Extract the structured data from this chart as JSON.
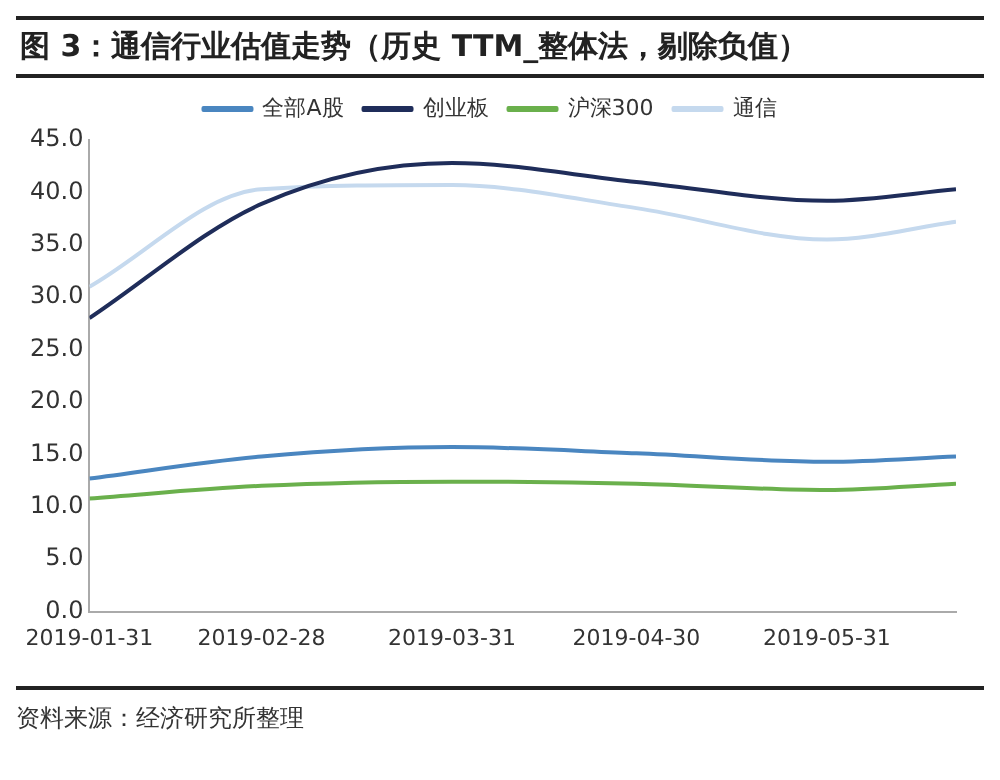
{
  "chart_data": {
    "type": "line",
    "title": "图 3：通信行业估值走势（历史 TTM_整体法，剔除负值）",
    "x": [
      "2019-01-31",
      "2019-02-28",
      "2019-03-31",
      "2019-04-30",
      "2019-05-31",
      "2019-06-21"
    ],
    "series": [
      {
        "name": "全部A股",
        "color": "#4a86c0",
        "values": [
          12.7,
          14.8,
          15.7,
          15.1,
          14.3,
          14.8
        ]
      },
      {
        "name": "创业板",
        "color": "#1f2d5a",
        "values": [
          28.0,
          38.9,
          42.8,
          41.0,
          39.2,
          40.3
        ]
      },
      {
        "name": "沪深300",
        "color": "#6ab04c",
        "values": [
          10.8,
          12.0,
          12.4,
          12.2,
          11.6,
          12.2
        ]
      },
      {
        "name": "通信",
        "color": "#c5d9ee",
        "values": [
          31.0,
          40.3,
          40.7,
          38.5,
          35.5,
          37.2
        ]
      }
    ],
    "xlim": [
      "2019-01-31",
      "2019-06-21"
    ],
    "xticks": [
      "2019-01-31",
      "2019-02-28",
      "2019-03-31",
      "2019-04-30",
      "2019-05-31"
    ],
    "ylim": [
      0,
      45
    ],
    "yticks": [
      {
        "value": 0,
        "label": "0.0"
      },
      {
        "value": 5,
        "label": "5.0"
      },
      {
        "value": 10,
        "label": "10.0"
      },
      {
        "value": 15,
        "label": "15.0"
      },
      {
        "value": 20,
        "label": "20.0"
      },
      {
        "value": 25,
        "label": "25.0"
      },
      {
        "value": 30,
        "label": "30.0"
      },
      {
        "value": 35,
        "label": "35.0"
      },
      {
        "value": 40,
        "label": "40.0"
      },
      {
        "value": 45,
        "label": "45.0"
      }
    ],
    "legend": "top",
    "grid": false,
    "marker": "none",
    "line_style": "solid",
    "annotations": [
      "资料来源：经济研究所整理"
    ]
  }
}
